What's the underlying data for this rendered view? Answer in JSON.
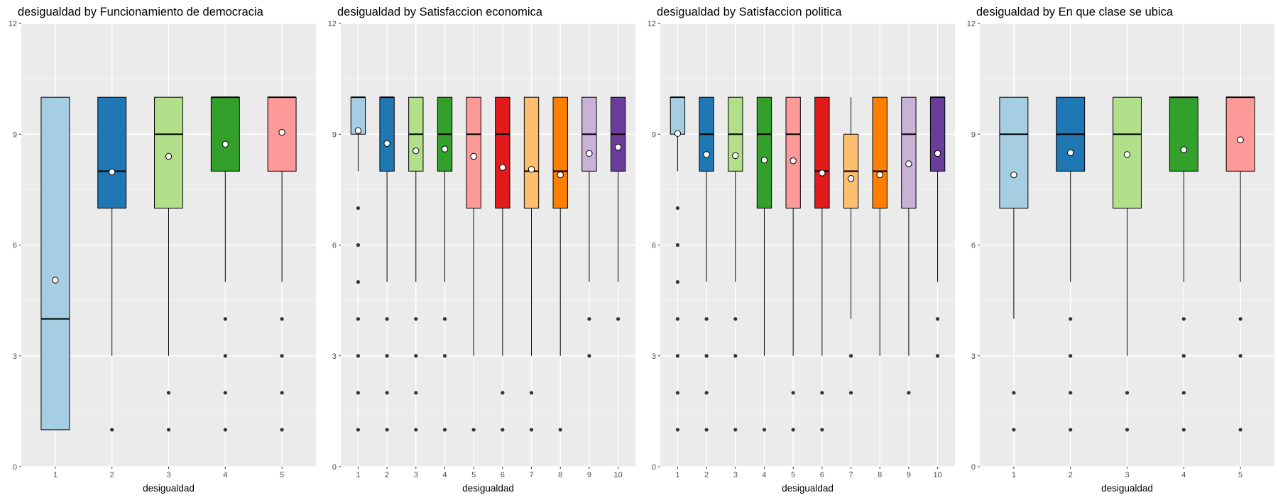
{
  "colors": {
    "panel_bg": "#EBEBEB",
    "grid_major": "#FFFFFF",
    "grid_minor": "#F5F5F5",
    "text_title": "#000000",
    "text_axis": "#4D4D4D",
    "palette": [
      "#A6CEE3",
      "#1F78B4",
      "#B2DF8A",
      "#33A02C",
      "#FB9A99",
      "#E31A1C",
      "#FDBF6F",
      "#FF7F00",
      "#CAB2D6",
      "#6A3D9A"
    ]
  },
  "chart_data": [
    {
      "type": "box",
      "title": "desigualdad by Funcionamiento de democracia",
      "xlabel": "desigualdad",
      "ylabel": "",
      "ylim": [
        0,
        12
      ],
      "yticks": [
        0,
        3,
        6,
        9,
        12
      ],
      "categories": [
        "1",
        "2",
        "3",
        "4",
        "5"
      ],
      "boxes": [
        {
          "category": "1",
          "lower": 1,
          "q1": 1,
          "median": 4,
          "q3": 10,
          "upper": 10,
          "mean": 5.05,
          "outliers": []
        },
        {
          "category": "2",
          "lower": 3,
          "q1": 7,
          "median": 8,
          "q3": 10,
          "upper": 10,
          "mean": 7.98,
          "outliers": [
            1
          ]
        },
        {
          "category": "3",
          "lower": 3,
          "q1": 7,
          "median": 9,
          "q3": 10,
          "upper": 10,
          "mean": 8.4,
          "outliers": [
            2,
            1
          ]
        },
        {
          "category": "4",
          "lower": 5,
          "q1": 8,
          "median": 10,
          "q3": 10,
          "upper": 10,
          "mean": 8.73,
          "outliers": [
            4,
            3,
            2,
            1
          ]
        },
        {
          "category": "5",
          "lower": 5,
          "q1": 8,
          "median": 10,
          "q3": 10,
          "upper": 10,
          "mean": 9.05,
          "outliers": [
            4,
            3,
            2,
            1
          ]
        }
      ]
    },
    {
      "type": "box",
      "title": "desigualdad by Satisfaccion economica",
      "xlabel": "desigualdad",
      "ylabel": "",
      "ylim": [
        0,
        12
      ],
      "yticks": [
        0,
        3,
        6,
        9,
        12
      ],
      "categories": [
        "1",
        "2",
        "3",
        "4",
        "5",
        "6",
        "7",
        "8",
        "9",
        "10"
      ],
      "boxes": [
        {
          "category": "1",
          "lower": 8,
          "q1": 9,
          "median": 10,
          "q3": 10,
          "upper": 10,
          "mean": 9.1,
          "outliers": [
            7,
            6,
            5,
            4,
            3,
            2,
            1
          ]
        },
        {
          "category": "2",
          "lower": 5,
          "q1": 8,
          "median": 10,
          "q3": 10,
          "upper": 10,
          "mean": 8.75,
          "outliers": [
            4,
            3,
            2,
            1
          ]
        },
        {
          "category": "3",
          "lower": 5,
          "q1": 8,
          "median": 9,
          "q3": 10,
          "upper": 10,
          "mean": 8.55,
          "outliers": [
            4,
            3,
            2,
            1
          ]
        },
        {
          "category": "4",
          "lower": 5,
          "q1": 8,
          "median": 9,
          "q3": 10,
          "upper": 10,
          "mean": 8.6,
          "outliers": [
            4,
            3,
            1
          ]
        },
        {
          "category": "5",
          "lower": 3,
          "q1": 7,
          "median": 9,
          "q3": 10,
          "upper": 10,
          "mean": 8.4,
          "outliers": [
            1
          ]
        },
        {
          "category": "6",
          "lower": 3,
          "q1": 7,
          "median": 9,
          "q3": 10,
          "upper": 10,
          "mean": 8.1,
          "outliers": [
            2,
            1
          ]
        },
        {
          "category": "7",
          "lower": 3,
          "q1": 7,
          "median": 8,
          "q3": 10,
          "upper": 10,
          "mean": 8.05,
          "outliers": [
            2,
            1
          ]
        },
        {
          "category": "8",
          "lower": 3,
          "q1": 7,
          "median": 8,
          "q3": 10,
          "upper": 10,
          "mean": 7.9,
          "outliers": [
            1
          ]
        },
        {
          "category": "9",
          "lower": 5,
          "q1": 8,
          "median": 9,
          "q3": 10,
          "upper": 10,
          "mean": 8.48,
          "outliers": [
            4,
            3
          ]
        },
        {
          "category": "10",
          "lower": 5,
          "q1": 8,
          "median": 9,
          "q3": 10,
          "upper": 10,
          "mean": 8.65,
          "outliers": [
            4
          ]
        }
      ]
    },
    {
      "type": "box",
      "title": "desigualdad by Satisfaccion politica",
      "xlabel": "desigualdad",
      "ylabel": "",
      "ylim": [
        0,
        12
      ],
      "yticks": [
        0,
        3,
        6,
        9,
        12
      ],
      "categories": [
        "1",
        "2",
        "3",
        "4",
        "5",
        "6",
        "7",
        "8",
        "9",
        "10"
      ],
      "boxes": [
        {
          "category": "1",
          "lower": 8,
          "q1": 9,
          "median": 10,
          "q3": 10,
          "upper": 10,
          "mean": 9.02,
          "outliers": [
            7,
            6,
            5,
            4,
            3,
            2,
            1
          ]
        },
        {
          "category": "2",
          "lower": 5,
          "q1": 8,
          "median": 9,
          "q3": 10,
          "upper": 10,
          "mean": 8.45,
          "outliers": [
            4,
            3,
            2,
            1
          ]
        },
        {
          "category": "3",
          "lower": 5,
          "q1": 8,
          "median": 9,
          "q3": 10,
          "upper": 10,
          "mean": 8.42,
          "outliers": [
            4,
            3,
            1
          ]
        },
        {
          "category": "4",
          "lower": 3,
          "q1": 7,
          "median": 9,
          "q3": 10,
          "upper": 10,
          "mean": 8.3,
          "outliers": [
            1
          ]
        },
        {
          "category": "5",
          "lower": 3,
          "q1": 7,
          "median": 9,
          "q3": 10,
          "upper": 10,
          "mean": 8.28,
          "outliers": [
            2,
            1
          ]
        },
        {
          "category": "6",
          "lower": 3,
          "q1": 7,
          "median": 8,
          "q3": 10,
          "upper": 10,
          "mean": 7.95,
          "outliers": [
            2,
            1
          ]
        },
        {
          "category": "7",
          "lower": 4,
          "q1": 7,
          "median": 8,
          "q3": 9,
          "upper": 10,
          "mean": 7.8,
          "outliers": [
            3,
            2
          ]
        },
        {
          "category": "8",
          "lower": 3,
          "q1": 7,
          "median": 8,
          "q3": 10,
          "upper": 10,
          "mean": 7.9,
          "outliers": []
        },
        {
          "category": "9",
          "lower": 3,
          "q1": 7,
          "median": 9,
          "q3": 10,
          "upper": 10,
          "mean": 8.2,
          "outliers": [
            2
          ]
        },
        {
          "category": "10",
          "lower": 5,
          "q1": 8,
          "median": 10,
          "q3": 10,
          "upper": 10,
          "mean": 8.48,
          "outliers": [
            4,
            3
          ]
        }
      ]
    },
    {
      "type": "box",
      "title": "desigualdad by En que clase se ubica",
      "xlabel": "desigualdad",
      "ylabel": "",
      "ylim": [
        0,
        12
      ],
      "yticks": [
        0,
        3,
        6,
        9,
        12
      ],
      "categories": [
        "1",
        "2",
        "3",
        "4",
        "5"
      ],
      "boxes": [
        {
          "category": "1",
          "lower": 4,
          "q1": 7,
          "median": 9,
          "q3": 10,
          "upper": 10,
          "mean": 7.9,
          "outliers": [
            2,
            1
          ]
        },
        {
          "category": "2",
          "lower": 5,
          "q1": 8,
          "median": 9,
          "q3": 10,
          "upper": 10,
          "mean": 8.5,
          "outliers": [
            4,
            3,
            2,
            1
          ]
        },
        {
          "category": "3",
          "lower": 3,
          "q1": 7,
          "median": 9,
          "q3": 10,
          "upper": 10,
          "mean": 8.45,
          "outliers": [
            2,
            1
          ]
        },
        {
          "category": "4",
          "lower": 5,
          "q1": 8,
          "median": 10,
          "q3": 10,
          "upper": 10,
          "mean": 8.58,
          "outliers": [
            4,
            3,
            2,
            1
          ]
        },
        {
          "category": "5",
          "lower": 5,
          "q1": 8,
          "median": 10,
          "q3": 10,
          "upper": 10,
          "mean": 8.85,
          "outliers": [
            4,
            3,
            1
          ]
        }
      ]
    }
  ]
}
